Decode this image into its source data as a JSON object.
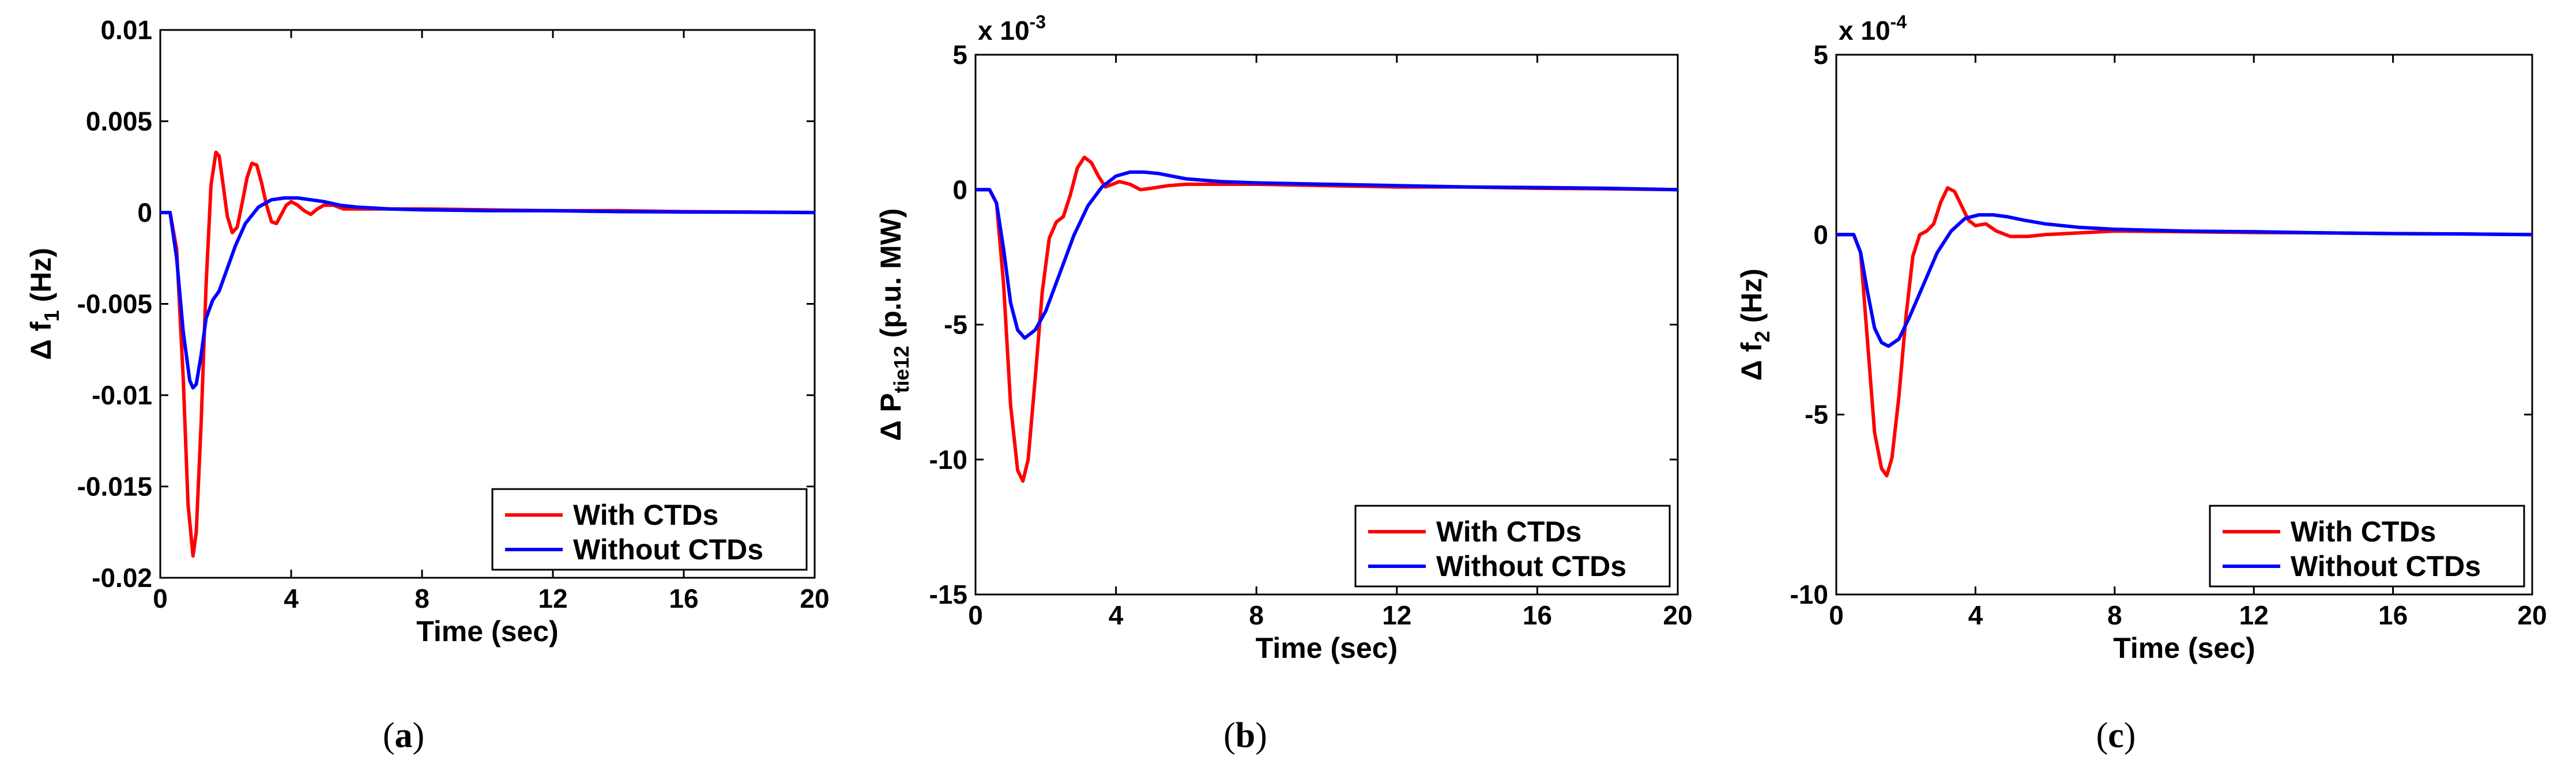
{
  "chart_data": [
    {
      "type": "line",
      "panel": "a",
      "caption_letter": "a",
      "xlabel": "Time (sec)",
      "ylabel_main": "Δ f",
      "ylabel_sub": "1",
      "ylabel_unit": "(Hz)",
      "xlim": [
        0,
        20
      ],
      "ylim": [
        -0.02,
        0.01
      ],
      "exponent_base": "",
      "exponent_power": "",
      "xticks": [
        0,
        4,
        8,
        12,
        16,
        20
      ],
      "xtick_labels": [
        "0",
        "4",
        "8",
        "12",
        "16",
        "20"
      ],
      "yticks": [
        -0.02,
        -0.015,
        -0.01,
        -0.005,
        0,
        0.005,
        0.01
      ],
      "ytick_labels": [
        "-0.02",
        "-0.015",
        "-0.01",
        "-0.005",
        "0",
        "0.005",
        "0.01"
      ],
      "legend_position": "bottom-right",
      "series": [
        {
          "name": "With CTDs",
          "color": "#ff0000",
          "x": [
            0,
            0.3,
            0.5,
            0.7,
            0.85,
            1.0,
            1.1,
            1.25,
            1.4,
            1.55,
            1.7,
            1.8,
            1.9,
            2.05,
            2.2,
            2.35,
            2.5,
            2.65,
            2.8,
            2.95,
            3.1,
            3.25,
            3.4,
            3.55,
            3.7,
            3.85,
            4.0,
            4.2,
            4.4,
            4.6,
            4.8,
            5.0,
            5.3,
            5.6,
            6.0,
            6.5,
            7.0,
            8.0,
            10.0,
            12.0,
            14.0,
            16.0,
            18.0,
            20.0
          ],
          "y": [
            0,
            0,
            -0.002,
            -0.009,
            -0.016,
            -0.0188,
            -0.0175,
            -0.0115,
            -0.004,
            0.0015,
            0.0033,
            0.0031,
            0.0018,
            -0.0002,
            -0.0011,
            -0.0008,
            0.0005,
            0.0019,
            0.0027,
            0.0026,
            0.0016,
            0.0004,
            -0.0005,
            -0.0006,
            -0.0001,
            0.0004,
            0.0006,
            0.0004,
            0.0001,
            -0.0001,
            0.0002,
            0.0004,
            0.0004,
            0.0002,
            0.0002,
            0.0002,
            0.0002,
            0.0002,
            0.00015,
            0.0001,
            0.0001,
            5e-05,
            3e-05,
            0
          ]
        },
        {
          "name": "Without CTDs",
          "color": "#0000ff",
          "x": [
            0,
            0.3,
            0.5,
            0.7,
            0.9,
            1.0,
            1.1,
            1.25,
            1.4,
            1.6,
            1.8,
            2.0,
            2.3,
            2.6,
            3.0,
            3.4,
            3.8,
            4.2,
            4.6,
            5.0,
            5.5,
            6.0,
            7.0,
            8.0,
            10.0,
            12.0,
            14.0,
            16.0,
            18.0,
            20.0
          ],
          "y": [
            0,
            0,
            -0.0025,
            -0.0065,
            -0.0092,
            -0.0096,
            -0.0094,
            -0.0078,
            -0.0058,
            -0.0048,
            -0.0043,
            -0.0033,
            -0.0018,
            -0.0006,
            0.0003,
            0.0007,
            0.0008,
            0.0008,
            0.0007,
            0.0006,
            0.0004,
            0.0003,
            0.0002,
            0.00015,
            0.0001,
            0.0001,
            5e-05,
            3e-05,
            2e-05,
            0
          ]
        }
      ]
    },
    {
      "type": "line",
      "panel": "b",
      "caption_letter": "b",
      "xlabel": "Time (sec)",
      "ylabel_main": "Δ P",
      "ylabel_sub": "tie12",
      "ylabel_unit": "(p.u. MW)",
      "xlim": [
        0,
        20
      ],
      "ylim": [
        -15,
        5
      ],
      "exponent_base": "x 10",
      "exponent_power": "-3",
      "xticks": [
        0,
        4,
        8,
        12,
        16,
        20
      ],
      "xtick_labels": [
        "0",
        "4",
        "8",
        "12",
        "16",
        "20"
      ],
      "yticks": [
        -15,
        -10,
        -5,
        0,
        5
      ],
      "ytick_labels": [
        "-15",
        "-10",
        "-5",
        "0",
        "5"
      ],
      "legend_position": "bottom-right",
      "series": [
        {
          "name": "With CTDs",
          "color": "#ff0000",
          "x": [
            0,
            0.4,
            0.6,
            0.8,
            1.0,
            1.2,
            1.35,
            1.5,
            1.7,
            1.9,
            2.1,
            2.3,
            2.5,
            2.7,
            2.9,
            3.1,
            3.3,
            3.5,
            3.7,
            3.9,
            4.1,
            4.4,
            4.7,
            5.0,
            5.5,
            6.0,
            7.0,
            8.0,
            10.0,
            12.0,
            14.0,
            16.0,
            18.0,
            20.0
          ],
          "y": [
            0,
            0,
            -0.5,
            -3.5,
            -8.0,
            -10.4,
            -10.8,
            -10.0,
            -7.0,
            -3.8,
            -1.8,
            -1.2,
            -1.0,
            -0.2,
            0.8,
            1.2,
            1.0,
            0.5,
            0.1,
            0.2,
            0.3,
            0.2,
            0.0,
            0.05,
            0.15,
            0.2,
            0.2,
            0.2,
            0.15,
            0.1,
            0.1,
            0.05,
            0.03,
            0
          ]
        },
        {
          "name": "Without CTDs",
          "color": "#0000ff",
          "x": [
            0,
            0.4,
            0.6,
            0.8,
            1.0,
            1.2,
            1.4,
            1.7,
            2.0,
            2.4,
            2.8,
            3.2,
            3.6,
            4.0,
            4.4,
            4.8,
            5.2,
            5.6,
            6.0,
            7.0,
            8.0,
            10.0,
            12.0,
            14.0,
            16.0,
            18.0,
            20.0
          ],
          "y": [
            0,
            0,
            -0.5,
            -2.2,
            -4.2,
            -5.2,
            -5.5,
            -5.2,
            -4.5,
            -3.1,
            -1.7,
            -0.6,
            0.1,
            0.5,
            0.65,
            0.65,
            0.6,
            0.5,
            0.4,
            0.3,
            0.25,
            0.2,
            0.15,
            0.1,
            0.08,
            0.05,
            0
          ]
        }
      ]
    },
    {
      "type": "line",
      "panel": "c",
      "caption_letter": "c",
      "xlabel": "Time (sec)",
      "ylabel_main": "Δ f",
      "ylabel_sub": "2",
      "ylabel_unit": "(Hz)",
      "xlim": [
        0,
        20
      ],
      "ylim": [
        -10,
        5
      ],
      "exponent_base": "x 10",
      "exponent_power": "-4",
      "xticks": [
        0,
        4,
        8,
        12,
        16,
        20
      ],
      "xtick_labels": [
        "0",
        "4",
        "8",
        "12",
        "16",
        "20"
      ],
      "yticks": [
        -10,
        -5,
        0,
        5
      ],
      "ytick_labels": [
        "-10",
        "-5",
        "0",
        "5"
      ],
      "legend_position": "bottom-right",
      "series": [
        {
          "name": "With CTDs",
          "color": "#ff0000",
          "x": [
            0,
            0.5,
            0.7,
            0.9,
            1.1,
            1.3,
            1.45,
            1.6,
            1.8,
            2.0,
            2.2,
            2.4,
            2.6,
            2.8,
            3.0,
            3.2,
            3.4,
            3.6,
            3.8,
            4.0,
            4.3,
            4.6,
            5.0,
            5.5,
            6.0,
            7.0,
            8.0,
            10.0,
            12.0,
            14.0,
            16.0,
            18.0,
            20.0
          ],
          "y": [
            0,
            0,
            -0.5,
            -3.0,
            -5.5,
            -6.5,
            -6.7,
            -6.2,
            -4.5,
            -2.3,
            -0.6,
            0.0,
            0.1,
            0.3,
            0.9,
            1.3,
            1.2,
            0.8,
            0.4,
            0.25,
            0.3,
            0.1,
            -0.05,
            -0.05,
            0.0,
            0.05,
            0.1,
            0.08,
            0.06,
            0.05,
            0.03,
            0.02,
            0
          ]
        },
        {
          "name": "Without CTDs",
          "color": "#0000ff",
          "x": [
            0,
            0.5,
            0.7,
            0.9,
            1.1,
            1.3,
            1.5,
            1.8,
            2.1,
            2.5,
            2.9,
            3.3,
            3.7,
            4.1,
            4.5,
            4.9,
            5.4,
            6.0,
            7.0,
            8.0,
            10.0,
            12.0,
            14.0,
            16.0,
            18.0,
            20.0
          ],
          "y": [
            0,
            0,
            -0.5,
            -1.6,
            -2.6,
            -3.0,
            -3.1,
            -2.9,
            -2.3,
            -1.4,
            -0.5,
            0.1,
            0.45,
            0.55,
            0.55,
            0.5,
            0.4,
            0.3,
            0.2,
            0.15,
            0.1,
            0.08,
            0.05,
            0.03,
            0.02,
            0
          ]
        }
      ]
    }
  ]
}
